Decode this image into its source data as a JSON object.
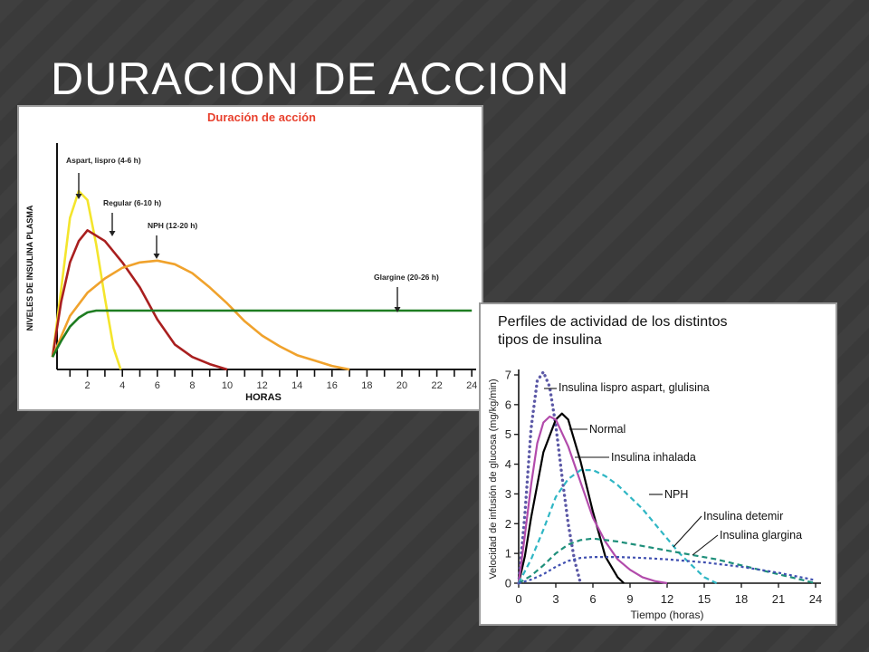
{
  "slide": {
    "title": "DURACION DE ACCION",
    "colors": {
      "background": "#3a3a3a",
      "stripe": "#444444",
      "title": "#ffffff"
    }
  },
  "chart_data": [
    {
      "type": "line",
      "title": "Duración de acción",
      "xlabel": "HORAS",
      "ylabel": "NIVELES DE INSULINA PLASMA",
      "xlim": [
        0,
        24
      ],
      "x_ticks": [
        2,
        4,
        6,
        8,
        10,
        12,
        14,
        16,
        18,
        20,
        22,
        24
      ],
      "grid": false,
      "series": [
        {
          "name": "Aspart, lispro (4-6 h)",
          "color": "#f4e52c",
          "peak_x": 1.5,
          "x": [
            0,
            0.5,
            1,
            1.5,
            2,
            2.5,
            3,
            3.5,
            3.9
          ],
          "y": [
            0.07,
            0.45,
            0.85,
            1.0,
            0.95,
            0.7,
            0.4,
            0.12,
            0.0
          ]
        },
        {
          "name": "Regular (6-10 h)",
          "color": "#a91f1f",
          "peak_x": 3,
          "x": [
            0,
            0.5,
            1,
            1.5,
            2,
            3,
            4,
            5,
            6,
            7,
            8,
            9,
            10
          ],
          "y": [
            0.07,
            0.38,
            0.6,
            0.72,
            0.78,
            0.72,
            0.6,
            0.46,
            0.28,
            0.14,
            0.07,
            0.03,
            0.0
          ]
        },
        {
          "name": "NPH (12-20 h)",
          "color": "#f0a22c",
          "peak_x": 6,
          "x": [
            0,
            1,
            2,
            3,
            4,
            5,
            6,
            7,
            8,
            9,
            10,
            11,
            12,
            13,
            14,
            15,
            16,
            17
          ],
          "y": [
            0.07,
            0.3,
            0.43,
            0.51,
            0.57,
            0.6,
            0.61,
            0.59,
            0.54,
            0.46,
            0.37,
            0.27,
            0.19,
            0.13,
            0.08,
            0.05,
            0.02,
            0.0
          ]
        },
        {
          "name": "Glargine (20-26 h)",
          "color": "#1f7d22",
          "peak_x": 20,
          "x": [
            0,
            0.5,
            1,
            1.5,
            2,
            2.5,
            3,
            24
          ],
          "y": [
            0.07,
            0.16,
            0.24,
            0.29,
            0.32,
            0.33,
            0.33,
            0.33
          ]
        }
      ]
    },
    {
      "type": "line",
      "title": "Perfiles de actividad de los distintos tipos de insulina",
      "title_lines": [
        "Perfiles de actividad de los distintos",
        "tipos de insulina"
      ],
      "xlabel": "Tiempo (horas)",
      "ylabel": "Velocidad de infusión de glucosa (mg/kg/min)",
      "xlim": [
        0,
        24
      ],
      "ylim": [
        0,
        7
      ],
      "x_ticks": [
        0,
        3,
        6,
        9,
        12,
        15,
        18,
        21,
        24
      ],
      "y_ticks": [
        0,
        1,
        2,
        3,
        4,
        5,
        6,
        7
      ],
      "grid": false,
      "series": [
        {
          "name": "Insulina lispro aspart, glulisina",
          "color": "#5b58a6",
          "style": "dots",
          "x": [
            0,
            0.5,
            1,
            1.5,
            2,
            2.5,
            3,
            3.5,
            4,
            4.5,
            5
          ],
          "y": [
            0,
            2.3,
            5.2,
            6.8,
            7.1,
            6.6,
            5.3,
            3.6,
            2.0,
            0.8,
            0
          ]
        },
        {
          "name": "Normal",
          "color": "#000000",
          "style": "solid",
          "x": [
            0,
            0.5,
            1,
            2,
            3,
            3.5,
            4,
            5,
            6,
            7,
            8,
            8.5
          ],
          "y": [
            0,
            0.9,
            2.2,
            4.4,
            5.5,
            5.7,
            5.5,
            4.1,
            2.4,
            0.9,
            0.2,
            0
          ]
        },
        {
          "name": "Insulina inhalada",
          "color": "#b24bab",
          "style": "solid",
          "x": [
            0,
            0.5,
            1,
            1.5,
            2,
            2.5,
            3,
            4,
            5,
            6,
            7,
            8,
            9,
            10,
            11,
            12
          ],
          "y": [
            0,
            1.6,
            3.3,
            4.7,
            5.4,
            5.6,
            5.5,
            4.6,
            3.4,
            2.2,
            1.4,
            0.8,
            0.45,
            0.2,
            0.07,
            0
          ]
        },
        {
          "name": "NPH",
          "color": "#2fb6c4",
          "style": "dashed",
          "x": [
            0,
            1,
            2,
            3,
            4,
            5,
            6,
            7,
            8,
            9,
            10,
            11,
            12,
            13,
            14,
            15,
            16
          ],
          "y": [
            0,
            0.8,
            1.8,
            2.9,
            3.5,
            3.8,
            3.8,
            3.6,
            3.3,
            2.9,
            2.5,
            2.0,
            1.5,
            1.0,
            0.6,
            0.2,
            0
          ]
        },
        {
          "name": "Insulina detemir",
          "color": "#1e8f7a",
          "style": "dashed",
          "x": [
            0,
            1,
            2,
            3,
            4,
            5,
            6,
            8,
            10,
            12,
            14,
            16,
            18,
            20,
            22,
            24
          ],
          "y": [
            0,
            0.25,
            0.6,
            1.0,
            1.3,
            1.45,
            1.5,
            1.4,
            1.25,
            1.1,
            0.95,
            0.8,
            0.6,
            0.4,
            0.2,
            0
          ]
        },
        {
          "name": "Insulina glargina",
          "color": "#3f4fb0",
          "style": "short-dash",
          "x": [
            0,
            1,
            2,
            3,
            4,
            5,
            6,
            8,
            10,
            12,
            15,
            18,
            21,
            24
          ],
          "y": [
            0,
            0.12,
            0.3,
            0.55,
            0.75,
            0.85,
            0.88,
            0.88,
            0.85,
            0.8,
            0.7,
            0.55,
            0.35,
            0.1
          ]
        }
      ]
    }
  ]
}
